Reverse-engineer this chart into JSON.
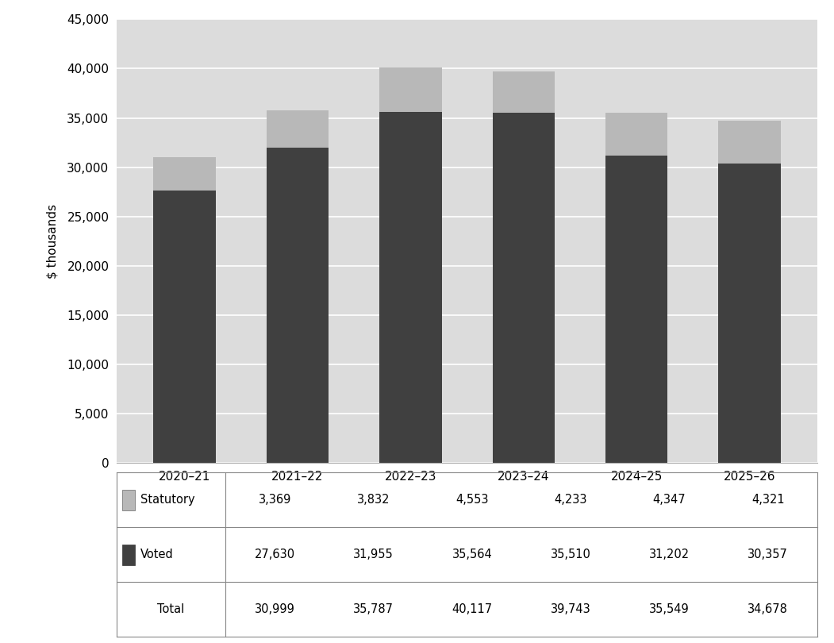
{
  "categories": [
    "2020–21",
    "2021–22",
    "2022–23",
    "2023–24",
    "2024–25",
    "2025–26"
  ],
  "statutory": [
    3369,
    3832,
    4553,
    4233,
    4347,
    4321
  ],
  "voted": [
    27630,
    31955,
    35564,
    35510,
    31202,
    30357
  ],
  "total": [
    30999,
    35787,
    40117,
    39743,
    35549,
    34678
  ],
  "statutory_color": "#b8b8b8",
  "voted_color": "#404040",
  "ylabel": "$ thousands",
  "ylim": [
    0,
    45000
  ],
  "yticks": [
    0,
    5000,
    10000,
    15000,
    20000,
    25000,
    30000,
    35000,
    40000,
    45000
  ],
  "plot_area_color": "#dcdcdc",
  "outer_bg": "#ffffff",
  "bar_width": 0.55,
  "table_row_labels": [
    "□ Statutory",
    "■ Voted",
    "Total"
  ],
  "font_size": 11,
  "table_font_size": 10.5
}
